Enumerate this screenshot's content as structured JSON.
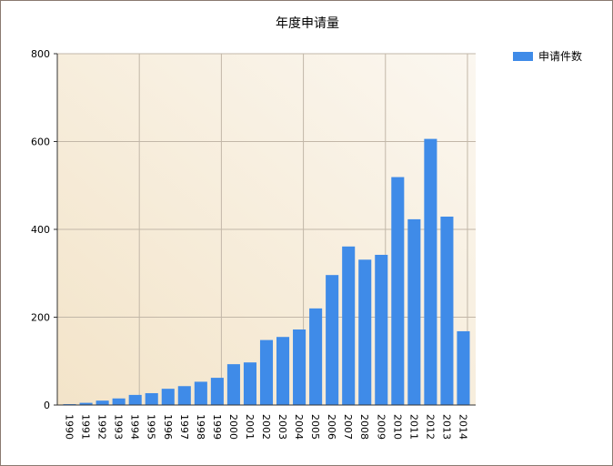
{
  "chart_data": {
    "type": "bar",
    "title": "年度申请量",
    "categories": [
      "1990",
      "1991",
      "1992",
      "1993",
      "1994",
      "1995",
      "1996",
      "1997",
      "1998",
      "1999",
      "2000",
      "2001",
      "2002",
      "2003",
      "2004",
      "2005",
      "2006",
      "2007",
      "2008",
      "2009",
      "2010",
      "2011",
      "2012",
      "2013",
      "2014"
    ],
    "series": [
      {
        "name": "申请件数",
        "values": [
          2,
          5,
          10,
          15,
          23,
          27,
          37,
          43,
          53,
          62,
          93,
          97,
          148,
          155,
          172,
          220,
          296,
          361,
          331,
          342,
          519,
          423,
          606,
          429,
          168
        ]
      }
    ],
    "ylim": [
      0,
      800
    ],
    "yticks": [
      "0",
      "200",
      "400",
      "600",
      "800"
    ],
    "grid": true,
    "legend": "top-right",
    "colors": {
      "bar": "#3f8be8",
      "plot_bg_from": "#f3e6cf",
      "plot_bg_to": "#fbf6ee",
      "grid": "#c2b7a8"
    }
  }
}
